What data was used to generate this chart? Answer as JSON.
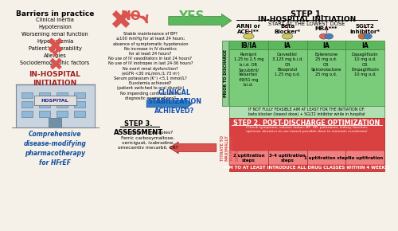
{
  "bg_color": "#f5f0e8",
  "title_step1": "STEP 1.",
  "title_step1_sub": "IN-HOSPITAL INITIATION",
  "title_step1_sub2": "START AT THE LOWEST DOSE",
  "barriers_title": "Barriers in practice",
  "barriers_items": [
    "Clinical inertia",
    "Hypotension",
    "Worsening renal function",
    "Hyperkalemia",
    "Patient's tolerability",
    "Allergies",
    "Sociodemographic factors"
  ],
  "inhospital_label": "IN-HOSPITAL\nINITIATION",
  "no_label": "NO",
  "yes_label": "YES",
  "drug_classes": [
    "ARNi or\nACE-I**",
    "Beta\nBlocker*",
    "MRA***",
    "SGLT2\ninhibitor*"
  ],
  "evidence_row": [
    "IB/IA",
    "IA",
    "IA",
    "IA"
  ],
  "drug_details": [
    "Ramipril\n1.25 to 2.5 mg\nb.i.d. OR\nSacubitril/\nValsartan\n49/51 mg\nb.i.d.",
    "Carvedilol\n3.125 mg b.i.d.\nOR\nBisoprolol\n1.25 mg o.d.",
    "Eplerenone\n25 mg o.d.\nOR\nSpironolactone\n25 mg o.d.",
    "Dapagliflozin\n10 mg o.d.\nOR\nEmpagliflozin\n10 mg o.d."
  ],
  "feasibility_note": "IF NOT FULLY FEASIBLE AIM AT LEAST FOR THE INITIATION OF:\nbeta blocker (lowest dose) + SGLT2 inhibitor while in hospital",
  "step2_title": "STEP 2. POST-DISCHARGE OPTIMIZATION",
  "step2_sub": "(Check symptoms, volume status, BP, HR, potassium, kidney function,\noptimize diuretics to use lowest possible dose to maintain euvolemia)",
  "step2_cols": [
    "2 uptitration\nsteps",
    "3-4 uptitration\nsteps",
    "1 uptitration step",
    "No uptitration"
  ],
  "step2_bottom": "AIM TO AT LEAST INTRODUCE ALL DRUG CLASSES WITHIN 4 WEEKS!",
  "step3_title": "STEP 3.\nASSESSMENT",
  "step3_sub": "Additional therapies?\nFerric carboxymaltose,\nvericiguat, ivabradine,\nomecamtiv mecarbil, CRT",
  "clinical_label": "CLINICAL\nSTABILIZATION\nACHIEVED?",
  "titrate_label": "TITRATE TO\nMAXIMALLY\nTOLERATED\nDOSE",
  "prior_discharge_label": "PRIOR TO DISCHARGE",
  "comprehensive_label": "Comprehensive\ndisease-modifying\npharmacotherapy\nfor HFrEF",
  "stable_bp_text": "Stable maintenance of BP?\n≥100 mmHg for at least 24 hours;\nabsence of symptomatic hypotension\nNo increase in IV diuretics\nfor at least 24 hours?\nNo use of IV vasodilators in last 24 hours?\nNo use of IV inotropes in last 24-36 hours?\nNo overt renal dysfunction?\n(eGFR <30 mL/min./1.73 m²)\nSerum potassium (K⁺) <5.1 mmol/L?\nEuvolemia achieved?\n(patient switched to oral diuretic)\nNo impending contrast use for\ndiagnostic examinations?",
  "green_color": "#5cb85c",
  "dark_green": "#3a7a3a",
  "red_color": "#d9534f",
  "dark_red": "#a02020",
  "blue_color": "#5bc0de",
  "dark_blue": "#2060a0",
  "evidence_green": "#70c070",
  "drug_green": "#90d090",
  "light_green": "#b8e8b8",
  "step2_red": "#e05050",
  "step2_light_red": "#f09090"
}
